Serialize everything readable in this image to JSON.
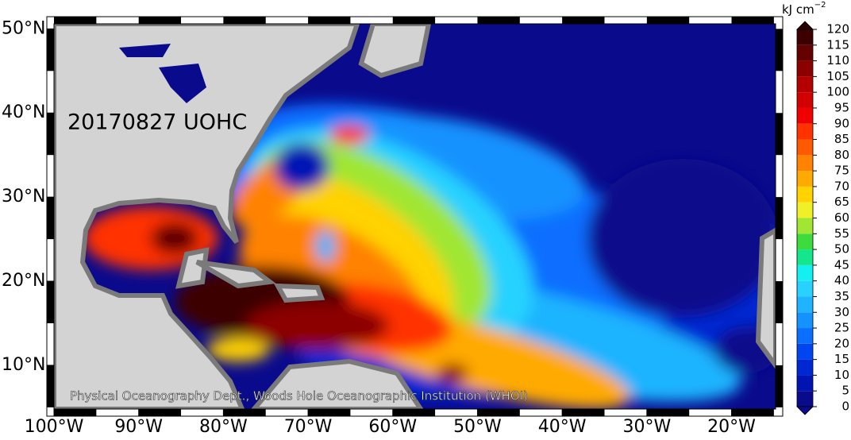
{
  "map": {
    "label": "20170827 UOHC",
    "credit": "Physical Oceanography Dept., Woods Hole Oceanographic Institution (WHOI)",
    "xlim": [
      -100,
      -14.8
    ],
    "ylim": [
      4.8,
      50.6
    ],
    "xticks": [
      {
        "value": -100,
        "label": "100°W"
      },
      {
        "value": -90,
        "label": "90°W"
      },
      {
        "value": -80,
        "label": "80°W"
      },
      {
        "value": -70,
        "label": "70°W"
      },
      {
        "value": -60,
        "label": "60°W"
      },
      {
        "value": -50,
        "label": "50°W"
      },
      {
        "value": -40,
        "label": "40°W"
      },
      {
        "value": -30,
        "label": "30°W"
      },
      {
        "value": -20,
        "label": "20°W"
      }
    ],
    "yticks": [
      {
        "value": 10,
        "label": "10°N"
      },
      {
        "value": 20,
        "label": "20°N"
      },
      {
        "value": 30,
        "label": "30°N"
      },
      {
        "value": 40,
        "label": "40°N"
      },
      {
        "value": 50,
        "label": "50°N"
      }
    ]
  },
  "colorbar": {
    "unit": "kJ cm",
    "unit_exponent": "−2",
    "ticks": [
      0,
      5,
      10,
      15,
      20,
      25,
      30,
      35,
      40,
      45,
      50,
      55,
      60,
      65,
      70,
      75,
      80,
      85,
      90,
      95,
      100,
      105,
      110,
      115,
      120
    ],
    "colors": [
      "#0a0a8c",
      "#0014b4",
      "#0028d2",
      "#0046f0",
      "#0a6eff",
      "#1492ff",
      "#1eb4ff",
      "#28d2ff",
      "#14f0f0",
      "#14e68c",
      "#3cdc3c",
      "#a0e632",
      "#f0f028",
      "#ffd200",
      "#ffaa00",
      "#ff8200",
      "#ff5a00",
      "#ff3200",
      "#f00000",
      "#d20000",
      "#b40000",
      "#8c0000",
      "#640000",
      "#3c0000"
    ],
    "under_color": "#0a0a8c",
    "over_color": "#280000"
  }
}
